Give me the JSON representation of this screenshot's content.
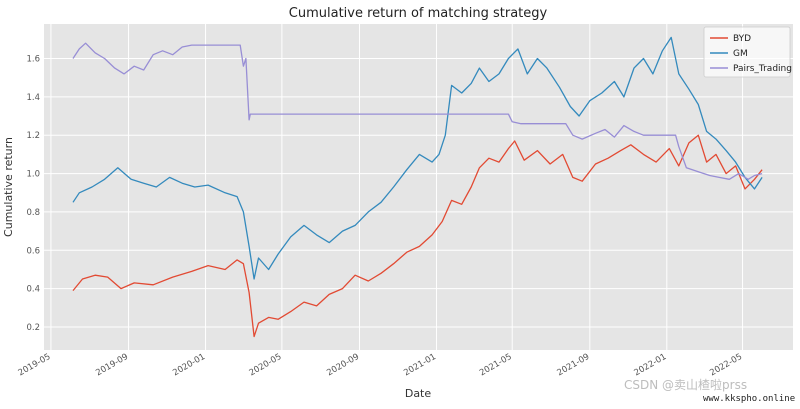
{
  "chart_data": {
    "type": "line",
    "title": "Cumulative return of matching strategy",
    "xlabel": "Date",
    "ylabel": "Cumulative return",
    "xlim": [
      "2019-04-20",
      "2022-07-20"
    ],
    "ylim": [
      0.08,
      1.78
    ],
    "xticks": [
      "2019-05",
      "2019-09",
      "2020-01",
      "2020-05",
      "2020-09",
      "2021-01",
      "2021-05",
      "2021-09",
      "2022-01",
      "2022-05"
    ],
    "yticks": [
      0.2,
      0.4,
      0.6,
      0.8,
      1.0,
      1.2,
      1.4,
      1.6
    ],
    "grid": true,
    "legend_position": "top-right",
    "series": [
      {
        "name": "BYD",
        "color": "#e24a33",
        "points": [
          [
            "2019-06-05",
            0.39
          ],
          [
            "2019-06-20",
            0.45
          ],
          [
            "2019-07-10",
            0.47
          ],
          [
            "2019-07-30",
            0.46
          ],
          [
            "2019-08-20",
            0.4
          ],
          [
            "2019-09-10",
            0.43
          ],
          [
            "2019-10-10",
            0.42
          ],
          [
            "2019-11-10",
            0.46
          ],
          [
            "2019-12-10",
            0.49
          ],
          [
            "2020-01-05",
            0.52
          ],
          [
            "2020-02-01",
            0.5
          ],
          [
            "2020-02-20",
            0.55
          ],
          [
            "2020-03-01",
            0.53
          ],
          [
            "2020-03-10",
            0.38
          ],
          [
            "2020-03-18",
            0.15
          ],
          [
            "2020-03-25",
            0.22
          ],
          [
            "2020-04-10",
            0.25
          ],
          [
            "2020-04-25",
            0.24
          ],
          [
            "2020-05-15",
            0.28
          ],
          [
            "2020-06-05",
            0.33
          ],
          [
            "2020-06-25",
            0.31
          ],
          [
            "2020-07-15",
            0.37
          ],
          [
            "2020-08-05",
            0.4
          ],
          [
            "2020-08-25",
            0.47
          ],
          [
            "2020-09-15",
            0.44
          ],
          [
            "2020-10-05",
            0.48
          ],
          [
            "2020-10-25",
            0.53
          ],
          [
            "2020-11-15",
            0.59
          ],
          [
            "2020-12-05",
            0.62
          ],
          [
            "2020-12-25",
            0.68
          ],
          [
            "2021-01-10",
            0.75
          ],
          [
            "2021-01-25",
            0.86
          ],
          [
            "2021-02-10",
            0.84
          ],
          [
            "2021-02-25",
            0.93
          ],
          [
            "2021-03-10",
            1.03
          ],
          [
            "2021-03-25",
            1.08
          ],
          [
            "2021-04-10",
            1.06
          ],
          [
            "2021-04-25",
            1.13
          ],
          [
            "2021-05-05",
            1.17
          ],
          [
            "2021-05-20",
            1.07
          ],
          [
            "2021-06-10",
            1.12
          ],
          [
            "2021-06-30",
            1.05
          ],
          [
            "2021-07-20",
            1.1
          ],
          [
            "2021-08-05",
            0.98
          ],
          [
            "2021-08-20",
            0.96
          ],
          [
            "2021-09-10",
            1.05
          ],
          [
            "2021-09-30",
            1.08
          ],
          [
            "2021-10-20",
            1.12
          ],
          [
            "2021-11-05",
            1.15
          ],
          [
            "2021-11-25",
            1.1
          ],
          [
            "2021-12-15",
            1.06
          ],
          [
            "2022-01-05",
            1.13
          ],
          [
            "2022-01-20",
            1.04
          ],
          [
            "2022-02-05",
            1.16
          ],
          [
            "2022-02-20",
            1.2
          ],
          [
            "2022-03-05",
            1.06
          ],
          [
            "2022-03-20",
            1.1
          ],
          [
            "2022-04-05",
            1.0
          ],
          [
            "2022-04-20",
            1.04
          ],
          [
            "2022-05-05",
            0.92
          ],
          [
            "2022-05-20",
            0.97
          ],
          [
            "2022-06-01",
            1.02
          ]
        ]
      },
      {
        "name": "GM",
        "color": "#348abd",
        "points": [
          [
            "2019-06-05",
            0.85
          ],
          [
            "2019-06-15",
            0.9
          ],
          [
            "2019-07-05",
            0.93
          ],
          [
            "2019-07-25",
            0.97
          ],
          [
            "2019-08-15",
            1.03
          ],
          [
            "2019-09-05",
            0.97
          ],
          [
            "2019-09-25",
            0.95
          ],
          [
            "2019-10-15",
            0.93
          ],
          [
            "2019-11-05",
            0.98
          ],
          [
            "2019-11-25",
            0.95
          ],
          [
            "2019-12-15",
            0.93
          ],
          [
            "2020-01-05",
            0.94
          ],
          [
            "2020-02-01",
            0.9
          ],
          [
            "2020-02-20",
            0.88
          ],
          [
            "2020-03-01",
            0.8
          ],
          [
            "2020-03-10",
            0.62
          ],
          [
            "2020-03-18",
            0.45
          ],
          [
            "2020-03-25",
            0.56
          ],
          [
            "2020-04-10",
            0.5
          ],
          [
            "2020-04-25",
            0.58
          ],
          [
            "2020-05-15",
            0.67
          ],
          [
            "2020-06-05",
            0.73
          ],
          [
            "2020-06-25",
            0.68
          ],
          [
            "2020-07-15",
            0.64
          ],
          [
            "2020-08-05",
            0.7
          ],
          [
            "2020-08-25",
            0.73
          ],
          [
            "2020-09-15",
            0.8
          ],
          [
            "2020-10-05",
            0.85
          ],
          [
            "2020-10-25",
            0.93
          ],
          [
            "2020-11-15",
            1.02
          ],
          [
            "2020-12-05",
            1.1
          ],
          [
            "2020-12-25",
            1.06
          ],
          [
            "2021-01-05",
            1.1
          ],
          [
            "2021-01-15",
            1.2
          ],
          [
            "2021-01-25",
            1.46
          ],
          [
            "2021-02-10",
            1.42
          ],
          [
            "2021-02-25",
            1.47
          ],
          [
            "2021-03-10",
            1.55
          ],
          [
            "2021-03-25",
            1.48
          ],
          [
            "2021-04-10",
            1.52
          ],
          [
            "2021-04-25",
            1.6
          ],
          [
            "2021-05-10",
            1.65
          ],
          [
            "2021-05-25",
            1.52
          ],
          [
            "2021-06-10",
            1.6
          ],
          [
            "2021-06-25",
            1.55
          ],
          [
            "2021-07-15",
            1.45
          ],
          [
            "2021-08-01",
            1.35
          ],
          [
            "2021-08-15",
            1.3
          ],
          [
            "2021-09-01",
            1.38
          ],
          [
            "2021-09-20",
            1.42
          ],
          [
            "2021-10-10",
            1.48
          ],
          [
            "2021-10-25",
            1.4
          ],
          [
            "2021-11-10",
            1.55
          ],
          [
            "2021-11-25",
            1.6
          ],
          [
            "2021-12-10",
            1.52
          ],
          [
            "2021-12-25",
            1.64
          ],
          [
            "2022-01-08",
            1.71
          ],
          [
            "2022-01-20",
            1.52
          ],
          [
            "2022-02-05",
            1.44
          ],
          [
            "2022-02-20",
            1.36
          ],
          [
            "2022-03-05",
            1.22
          ],
          [
            "2022-03-20",
            1.18
          ],
          [
            "2022-04-05",
            1.12
          ],
          [
            "2022-04-20",
            1.06
          ],
          [
            "2022-05-05",
            0.98
          ],
          [
            "2022-05-20",
            0.92
          ],
          [
            "2022-06-01",
            0.98
          ]
        ]
      },
      {
        "name": "Pairs_Trading",
        "color": "#988ed5",
        "points": [
          [
            "2019-06-05",
            1.6
          ],
          [
            "2019-06-15",
            1.65
          ],
          [
            "2019-06-25",
            1.68
          ],
          [
            "2019-07-10",
            1.63
          ],
          [
            "2019-07-25",
            1.6
          ],
          [
            "2019-08-10",
            1.55
          ],
          [
            "2019-08-25",
            1.52
          ],
          [
            "2019-09-10",
            1.56
          ],
          [
            "2019-09-25",
            1.54
          ],
          [
            "2019-10-10",
            1.62
          ],
          [
            "2019-10-25",
            1.64
          ],
          [
            "2019-11-10",
            1.62
          ],
          [
            "2019-11-25",
            1.66
          ],
          [
            "2019-12-10",
            1.67
          ],
          [
            "2020-02-25",
            1.67
          ],
          [
            "2020-03-01",
            1.56
          ],
          [
            "2020-03-05",
            1.6
          ],
          [
            "2020-03-10",
            1.28
          ],
          [
            "2020-03-12",
            1.31
          ],
          [
            "2021-03-15",
            1.31
          ],
          [
            "2021-04-25",
            1.31
          ],
          [
            "2021-05-01",
            1.27
          ],
          [
            "2021-05-15",
            1.26
          ],
          [
            "2021-07-25",
            1.26
          ],
          [
            "2021-08-05",
            1.2
          ],
          [
            "2021-08-20",
            1.18
          ],
          [
            "2021-09-10",
            1.21
          ],
          [
            "2021-09-25",
            1.23
          ],
          [
            "2021-10-10",
            1.19
          ],
          [
            "2021-10-25",
            1.25
          ],
          [
            "2021-11-10",
            1.22
          ],
          [
            "2021-11-25",
            1.2
          ],
          [
            "2022-01-15",
            1.2
          ],
          [
            "2022-01-20",
            1.14
          ],
          [
            "2022-02-01",
            1.03
          ],
          [
            "2022-02-20",
            1.01
          ],
          [
            "2022-03-10",
            0.99
          ],
          [
            "2022-03-25",
            0.98
          ],
          [
            "2022-04-10",
            0.97
          ],
          [
            "2022-04-25",
            1.0
          ],
          [
            "2022-05-10",
            0.97
          ],
          [
            "2022-05-20",
            0.99
          ],
          [
            "2022-06-01",
            1.0
          ]
        ]
      }
    ]
  },
  "watermark": {
    "main": "CSDN @卖山楂啦prss",
    "site": "www.kkspho.online"
  }
}
